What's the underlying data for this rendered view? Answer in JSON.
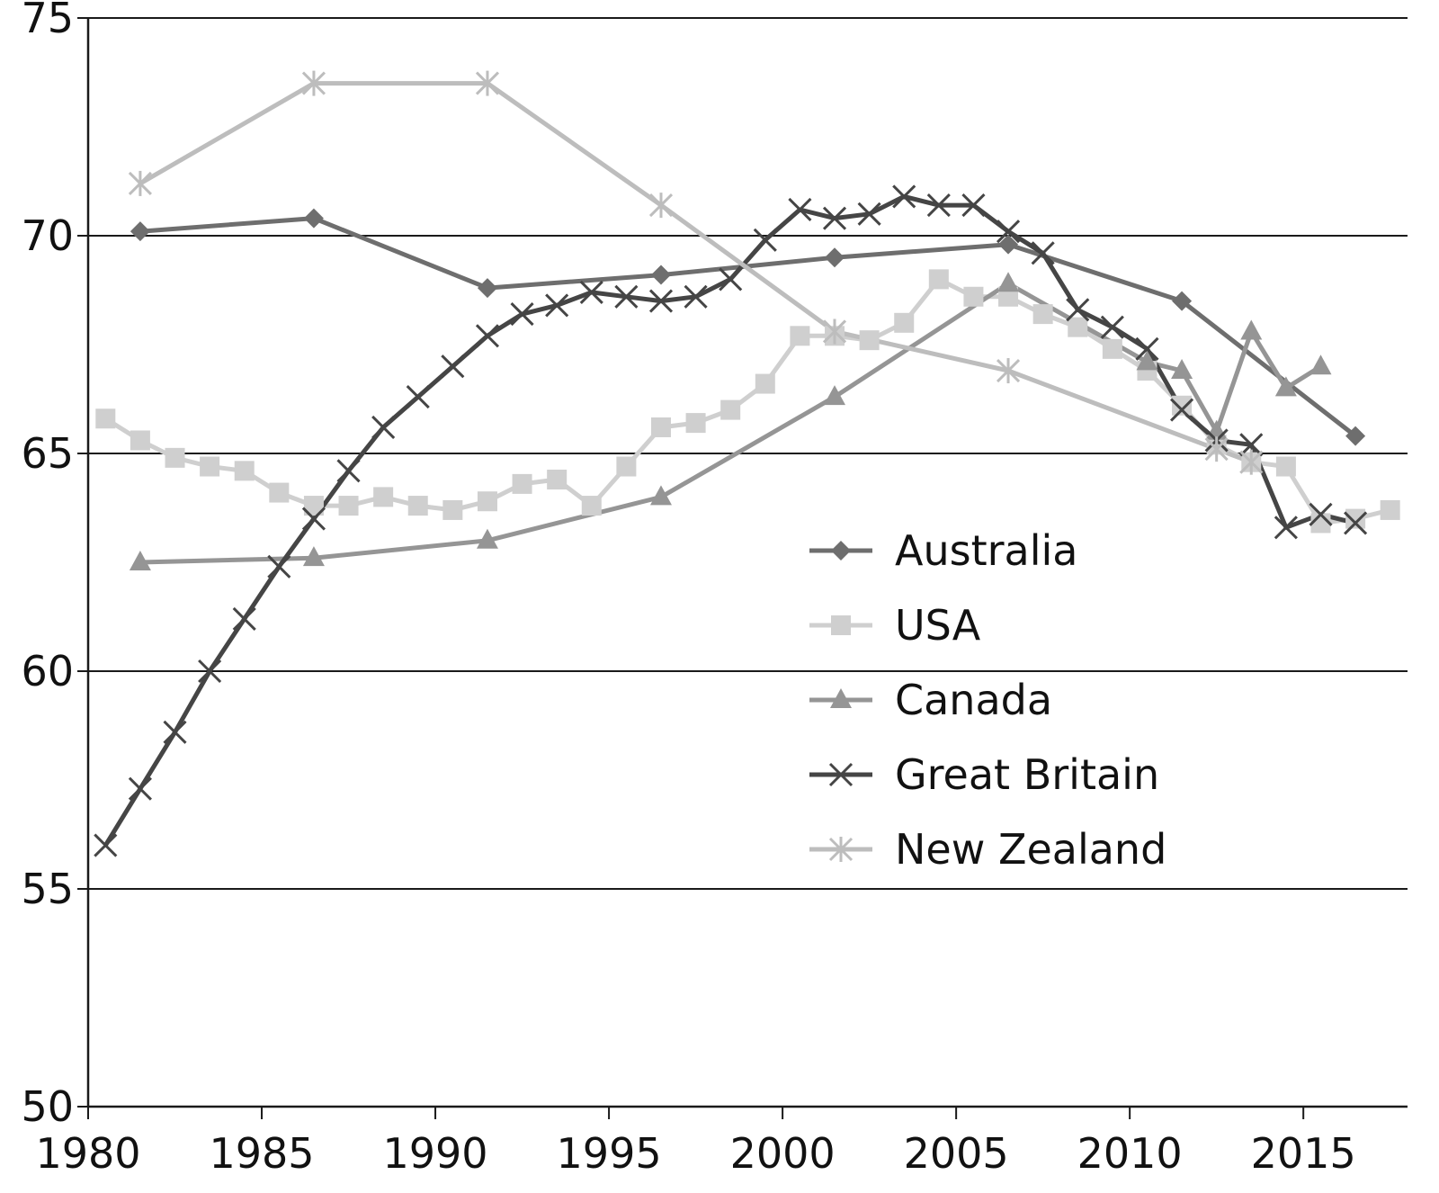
{
  "chart_data": {
    "type": "line",
    "title": "",
    "xlabel": "",
    "ylabel": "",
    "xlim": [
      1980,
      2018
    ],
    "ylim": [
      50,
      75
    ],
    "x_ticks": [
      1980,
      1985,
      1990,
      1995,
      2000,
      2005,
      2010,
      2015
    ],
    "y_ticks": [
      50,
      55,
      60,
      65,
      70,
      75
    ],
    "grid": "horizontal",
    "legend_position": "lower-right-center",
    "series": [
      {
        "name": "Australia",
        "color": "#6e6e6e",
        "marker": "diamond",
        "points": [
          [
            1981.5,
            70.1
          ],
          [
            1986.5,
            70.4
          ],
          [
            1991.5,
            68.8
          ],
          [
            1996.5,
            69.1
          ],
          [
            2001.5,
            69.5
          ],
          [
            2006.5,
            69.8
          ],
          [
            2011.5,
            68.5
          ],
          [
            2016.5,
            65.4
          ]
        ]
      },
      {
        "name": "USA",
        "color": "#cfcfcf",
        "marker": "square",
        "points": [
          [
            1980.5,
            65.8
          ],
          [
            1981.5,
            65.3
          ],
          [
            1982.5,
            64.9
          ],
          [
            1983.5,
            64.7
          ],
          [
            1984.5,
            64.6
          ],
          [
            1985.5,
            64.1
          ],
          [
            1986.5,
            63.8
          ],
          [
            1987.5,
            63.8
          ],
          [
            1988.5,
            64.0
          ],
          [
            1989.5,
            63.8
          ],
          [
            1990.5,
            63.7
          ],
          [
            1991.5,
            63.9
          ],
          [
            1992.5,
            64.3
          ],
          [
            1993.5,
            64.4
          ],
          [
            1994.5,
            63.8
          ],
          [
            1995.5,
            64.7
          ],
          [
            1996.5,
            65.6
          ],
          [
            1997.5,
            65.7
          ],
          [
            1998.5,
            66.0
          ],
          [
            1999.5,
            66.6
          ],
          [
            2000.5,
            67.7
          ],
          [
            2001.5,
            67.7
          ],
          [
            2002.5,
            67.6
          ],
          [
            2003.5,
            68.0
          ],
          [
            2004.5,
            69.0
          ],
          [
            2005.5,
            68.6
          ],
          [
            2006.5,
            68.6
          ],
          [
            2007.5,
            68.2
          ],
          [
            2008.5,
            67.9
          ],
          [
            2009.5,
            67.4
          ],
          [
            2010.5,
            66.9
          ],
          [
            2011.5,
            66.1
          ],
          [
            2012.5,
            65.2
          ],
          [
            2013.5,
            64.8
          ],
          [
            2014.5,
            64.7
          ],
          [
            2015.5,
            63.4
          ],
          [
            2016.5,
            63.5
          ],
          [
            2017.5,
            63.7
          ]
        ]
      },
      {
        "name": "Canada",
        "color": "#959595",
        "marker": "triangle",
        "points": [
          [
            1981.5,
            62.5
          ],
          [
            1986.5,
            62.6
          ],
          [
            1991.5,
            63.0
          ],
          [
            1996.5,
            64.0
          ],
          [
            2001.5,
            66.3
          ],
          [
            2006.5,
            68.9
          ],
          [
            2010.5,
            67.1
          ],
          [
            2011.5,
            66.9
          ],
          [
            2012.5,
            65.5
          ],
          [
            2013.5,
            67.8
          ],
          [
            2014.5,
            66.5
          ],
          [
            2015.5,
            67.0
          ]
        ]
      },
      {
        "name": "Great Britain",
        "color": "#454545",
        "marker": "x",
        "points": [
          [
            1980.5,
            56.0
          ],
          [
            1981.5,
            57.3
          ],
          [
            1982.5,
            58.6
          ],
          [
            1983.5,
            60.0
          ],
          [
            1984.5,
            61.2
          ],
          [
            1985.5,
            62.4
          ],
          [
            1986.5,
            63.5
          ],
          [
            1987.5,
            64.6
          ],
          [
            1988.5,
            65.6
          ],
          [
            1989.5,
            66.3
          ],
          [
            1990.5,
            67.0
          ],
          [
            1991.5,
            67.7
          ],
          [
            1992.5,
            68.2
          ],
          [
            1993.5,
            68.4
          ],
          [
            1994.5,
            68.7
          ],
          [
            1995.5,
            68.6
          ],
          [
            1996.5,
            68.5
          ],
          [
            1997.5,
            68.6
          ],
          [
            1998.5,
            69.0
          ],
          [
            1999.5,
            69.9
          ],
          [
            2000.5,
            70.6
          ],
          [
            2001.5,
            70.4
          ],
          [
            2002.5,
            70.5
          ],
          [
            2003.5,
            70.9
          ],
          [
            2004.5,
            70.7
          ],
          [
            2005.5,
            70.7
          ],
          [
            2006.5,
            70.1
          ],
          [
            2007.5,
            69.6
          ],
          [
            2008.5,
            68.3
          ],
          [
            2009.5,
            67.9
          ],
          [
            2010.5,
            67.4
          ],
          [
            2011.5,
            66.0
          ],
          [
            2012.5,
            65.3
          ],
          [
            2013.5,
            65.2
          ],
          [
            2014.5,
            63.3
          ],
          [
            2015.5,
            63.6
          ],
          [
            2016.5,
            63.4
          ]
        ]
      },
      {
        "name": "New Zealand",
        "color": "#bdbdbd",
        "marker": "star",
        "points": [
          [
            1981.5,
            71.2
          ],
          [
            1986.5,
            73.5
          ],
          [
            1991.5,
            73.5
          ],
          [
            1996.5,
            70.7
          ],
          [
            2001.5,
            67.8
          ],
          [
            2006.5,
            66.9
          ],
          [
            2012.5,
            65.1
          ],
          [
            2013.5,
            64.8
          ]
        ]
      }
    ]
  }
}
